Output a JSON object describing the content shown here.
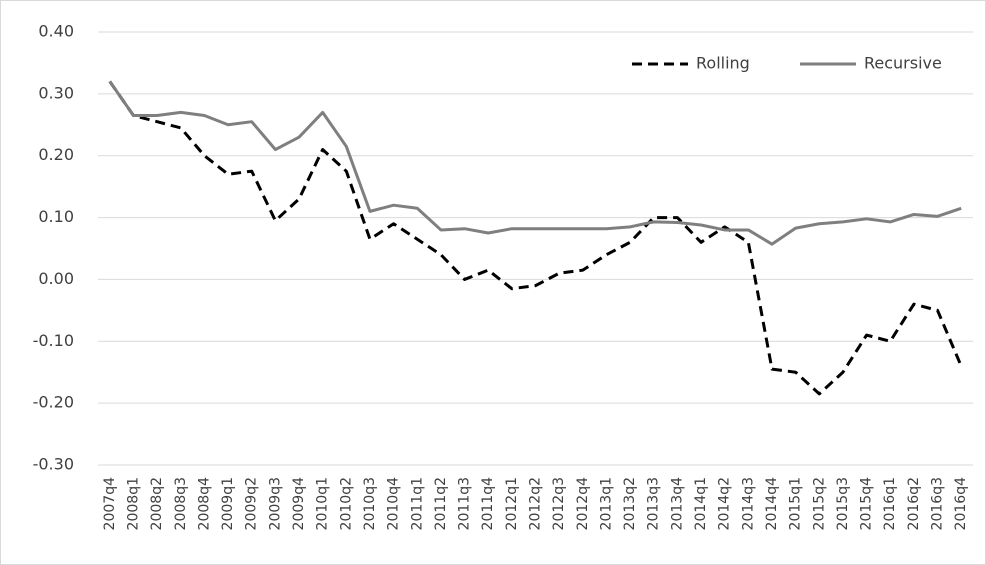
{
  "chart_data": {
    "type": "line",
    "categories": [
      "2007q4",
      "2008q1",
      "2008q2",
      "2008q3",
      "2008q4",
      "2009q1",
      "2009q2",
      "2009q3",
      "2009q4",
      "2010q1",
      "2010q2",
      "2010q3",
      "2010q4",
      "2011q1",
      "2011q2",
      "2011q3",
      "2011q4",
      "2012q1",
      "2012q2",
      "2012q3",
      "2012q4",
      "2013q1",
      "2013q2",
      "2013q3",
      "2013q4",
      "2014q1",
      "2014q2",
      "2014q3",
      "2014q4",
      "2015q1",
      "2015q2",
      "2015q3",
      "2015q4",
      "2016q1",
      "2016q2",
      "2016q3",
      "2016q4"
    ],
    "series": [
      {
        "name": "Rolling",
        "color": "#000000",
        "dashed": true,
        "values": [
          0.32,
          0.265,
          0.255,
          0.245,
          0.2,
          0.17,
          0.175,
          0.095,
          0.13,
          0.21,
          0.175,
          0.065,
          0.09,
          0.065,
          0.04,
          0.0,
          0.015,
          -0.015,
          -0.01,
          0.01,
          0.015,
          0.04,
          0.06,
          0.1,
          0.1,
          0.06,
          0.085,
          0.06,
          -0.145,
          -0.15,
          -0.185,
          -0.15,
          -0.09,
          -0.1,
          -0.04,
          -0.05,
          -0.14
        ]
      },
      {
        "name": "Recursive",
        "color": "#7f7f7f",
        "dashed": false,
        "values": [
          0.32,
          0.265,
          0.265,
          0.27,
          0.265,
          0.25,
          0.255,
          0.21,
          0.23,
          0.27,
          0.215,
          0.11,
          0.12,
          0.115,
          0.08,
          0.082,
          0.075,
          0.082,
          0.082,
          0.082,
          0.082,
          0.082,
          0.085,
          0.093,
          0.092,
          0.088,
          0.08,
          0.08,
          0.057,
          0.083,
          0.09,
          0.093,
          0.098,
          0.093,
          0.105,
          0.102,
          0.115
        ]
      }
    ],
    "ylim": [
      -0.3,
      0.4
    ],
    "yticks": [
      {
        "value": 0.4,
        "label": "0.40"
      },
      {
        "value": 0.3,
        "label": "0.30"
      },
      {
        "value": 0.2,
        "label": "0.20"
      },
      {
        "value": 0.1,
        "label": "0.10"
      },
      {
        "value": 0,
        "label": "0.00"
      },
      {
        "value": -0.1,
        "label": "-0.10"
      },
      {
        "value": -0.2,
        "label": "-0.20"
      },
      {
        "value": -0.3,
        "label": "-0.30"
      }
    ],
    "grid": true,
    "legend": "top-right"
  }
}
